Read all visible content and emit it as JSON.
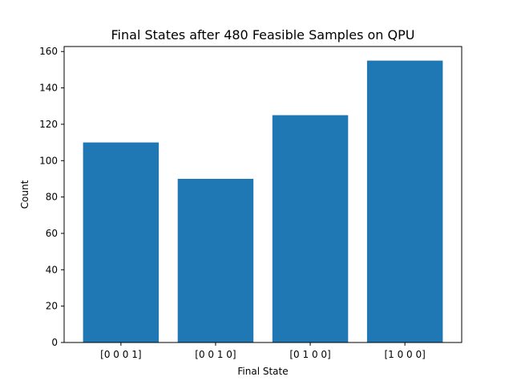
{
  "chart_data": {
    "type": "bar",
    "title": "Final States after 480 Feasible Samples on QPU",
    "xlabel": "Final State",
    "ylabel": "Count",
    "categories": [
      "[0 0 0 1]",
      "[0 0 1 0]",
      "[0 1 0 0]",
      "[1 0 0 0]"
    ],
    "values": [
      110,
      90,
      125,
      155
    ],
    "ylim": [
      0,
      162.75
    ],
    "yticks": [
      0,
      20,
      40,
      60,
      80,
      100,
      120,
      140,
      160
    ],
    "grid": false,
    "bar_color": "#1f77b4"
  }
}
